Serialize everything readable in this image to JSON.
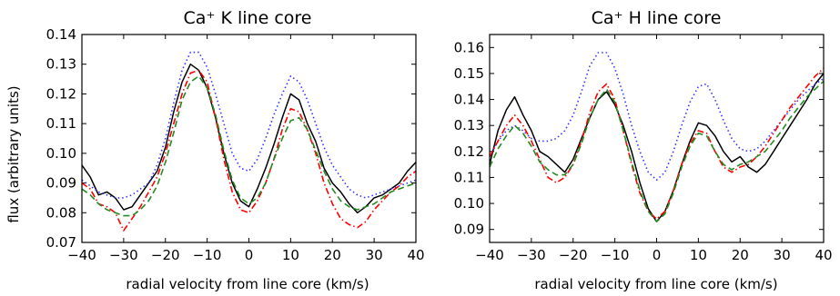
{
  "chart_data": [
    {
      "type": "line",
      "title": "Ca⁺  K line core",
      "xlabel": "radial velocity from line core (km/s)",
      "ylabel": "flux (arbitrary units)",
      "xlim": [
        -40,
        40
      ],
      "ylim": [
        0.07,
        0.14
      ],
      "xticks": [
        -40,
        -30,
        -20,
        -10,
        0,
        10,
        20,
        30,
        40
      ],
      "xtick_labels": [
        "−40",
        "−30",
        "−20",
        "−10",
        "0",
        "10",
        "20",
        "30",
        "40"
      ],
      "yticks": [
        0.07,
        0.08,
        0.09,
        0.1,
        0.11,
        0.12,
        0.13,
        0.14
      ],
      "ytick_labels": [
        "0.07",
        "0.08",
        "0.09",
        "0.10",
        "0.11",
        "0.12",
        "0.13",
        "0.14"
      ],
      "grid": false,
      "series": [
        {
          "color": "#000000",
          "style": "solid",
          "x": [
            -40,
            -38,
            -36,
            -34,
            -32,
            -30,
            -28,
            -26,
            -24,
            -22,
            -20,
            -18,
            -16,
            -14,
            -12,
            -10,
            -8,
            -6,
            -4,
            -2,
            0,
            2,
            4,
            6,
            8,
            10,
            12,
            14,
            16,
            18,
            20,
            22,
            24,
            26,
            28,
            30,
            32,
            34,
            36,
            38,
            40
          ],
          "y": [
            0.096,
            0.092,
            0.086,
            0.087,
            0.085,
            0.081,
            0.082,
            0.086,
            0.09,
            0.094,
            0.102,
            0.114,
            0.124,
            0.13,
            0.128,
            0.122,
            0.112,
            0.1,
            0.09,
            0.084,
            0.082,
            0.088,
            0.095,
            0.103,
            0.112,
            0.12,
            0.118,
            0.11,
            0.104,
            0.095,
            0.09,
            0.087,
            0.083,
            0.08,
            0.082,
            0.085,
            0.086,
            0.088,
            0.09,
            0.094,
            0.097
          ]
        },
        {
          "color": "#3333ff",
          "style": "dotted",
          "x": [
            -40,
            -38,
            -36,
            -34,
            -32,
            -30,
            -28,
            -26,
            -24,
            -22,
            -20,
            -18,
            -16,
            -14,
            -12,
            -10,
            -8,
            -6,
            -4,
            -2,
            0,
            2,
            4,
            6,
            8,
            10,
            12,
            14,
            16,
            18,
            20,
            22,
            24,
            26,
            28,
            30,
            32,
            34,
            36,
            38,
            40
          ],
          "y": [
            0.091,
            0.089,
            0.087,
            0.086,
            0.085,
            0.085,
            0.086,
            0.088,
            0.09,
            0.096,
            0.105,
            0.117,
            0.128,
            0.134,
            0.134,
            0.129,
            0.12,
            0.11,
            0.1,
            0.095,
            0.094,
            0.098,
            0.105,
            0.113,
            0.12,
            0.126,
            0.124,
            0.118,
            0.11,
            0.102,
            0.096,
            0.092,
            0.088,
            0.086,
            0.085,
            0.086,
            0.087,
            0.088,
            0.089,
            0.09,
            0.091
          ]
        },
        {
          "color": "#ff0000",
          "style": "dashdot",
          "x": [
            -40,
            -38,
            -36,
            -34,
            -32,
            -30,
            -28,
            -26,
            -24,
            -22,
            -20,
            -18,
            -16,
            -14,
            -12,
            -10,
            -8,
            -6,
            -4,
            -2,
            0,
            2,
            4,
            6,
            8,
            10,
            12,
            14,
            16,
            18,
            20,
            22,
            24,
            26,
            28,
            30,
            32,
            34,
            36,
            38,
            40
          ],
          "y": [
            0.09,
            0.088,
            0.083,
            0.082,
            0.08,
            0.074,
            0.078,
            0.082,
            0.087,
            0.092,
            0.1,
            0.11,
            0.12,
            0.127,
            0.128,
            0.124,
            0.112,
            0.098,
            0.087,
            0.081,
            0.08,
            0.084,
            0.09,
            0.098,
            0.108,
            0.115,
            0.114,
            0.108,
            0.1,
            0.09,
            0.083,
            0.078,
            0.076,
            0.075,
            0.077,
            0.081,
            0.084,
            0.087,
            0.089,
            0.092,
            0.094
          ]
        },
        {
          "color": "#228b22",
          "style": "dashed",
          "x": [
            -40,
            -38,
            -36,
            -34,
            -32,
            -30,
            -28,
            -26,
            -24,
            -22,
            -20,
            -18,
            -16,
            -14,
            -12,
            -10,
            -8,
            -6,
            -4,
            -2,
            0,
            2,
            4,
            6,
            8,
            10,
            12,
            14,
            16,
            18,
            20,
            22,
            24,
            26,
            28,
            30,
            32,
            34,
            36,
            38,
            40
          ],
          "y": [
            0.088,
            0.086,
            0.083,
            0.081,
            0.08,
            0.079,
            0.079,
            0.081,
            0.084,
            0.089,
            0.097,
            0.107,
            0.118,
            0.124,
            0.126,
            0.122,
            0.113,
            0.101,
            0.091,
            0.085,
            0.083,
            0.085,
            0.09,
            0.098,
            0.105,
            0.111,
            0.112,
            0.108,
            0.101,
            0.094,
            0.088,
            0.084,
            0.082,
            0.081,
            0.082,
            0.083,
            0.085,
            0.087,
            0.088,
            0.089,
            0.09
          ]
        }
      ]
    },
    {
      "type": "line",
      "title": "Ca⁺  H line core",
      "xlabel": "radial velocity from line core (km/s)",
      "ylabel": "",
      "xlim": [
        -40,
        40
      ],
      "ylim": [
        0.085,
        0.165
      ],
      "xticks": [
        -40,
        -30,
        -20,
        -10,
        0,
        10,
        20,
        30,
        40
      ],
      "xtick_labels": [
        "−40",
        "−30",
        "−20",
        "−10",
        "0",
        "10",
        "20",
        "30",
        "40"
      ],
      "yticks": [
        0.09,
        0.1,
        0.11,
        0.12,
        0.13,
        0.14,
        0.15,
        0.16
      ],
      "ytick_labels": [
        "0.09",
        "0.10",
        "0.11",
        "0.12",
        "0.13",
        "0.14",
        "0.15",
        "0.16"
      ],
      "grid": false,
      "series": [
        {
          "color": "#000000",
          "style": "solid",
          "x": [
            -40,
            -38,
            -36,
            -34,
            -32,
            -30,
            -28,
            -26,
            -24,
            -22,
            -20,
            -18,
            -16,
            -14,
            -12,
            -10,
            -8,
            -6,
            -4,
            -2,
            0,
            2,
            4,
            6,
            8,
            10,
            12,
            14,
            16,
            18,
            20,
            22,
            24,
            26,
            28,
            30,
            32,
            34,
            36,
            38,
            40
          ],
          "y": [
            0.115,
            0.128,
            0.136,
            0.141,
            0.134,
            0.128,
            0.12,
            0.118,
            0.115,
            0.112,
            0.117,
            0.125,
            0.133,
            0.14,
            0.143,
            0.138,
            0.13,
            0.12,
            0.108,
            0.098,
            0.093,
            0.097,
            0.105,
            0.115,
            0.124,
            0.131,
            0.13,
            0.126,
            0.12,
            0.116,
            0.118,
            0.114,
            0.112,
            0.115,
            0.12,
            0.125,
            0.13,
            0.135,
            0.14,
            0.146,
            0.15
          ]
        },
        {
          "color": "#3333ff",
          "style": "dotted",
          "x": [
            -40,
            -38,
            -36,
            -34,
            -32,
            -30,
            -28,
            -26,
            -24,
            -22,
            -20,
            -18,
            -16,
            -14,
            -12,
            -10,
            -8,
            -6,
            -4,
            -2,
            0,
            2,
            4,
            6,
            8,
            10,
            12,
            14,
            16,
            18,
            20,
            22,
            24,
            26,
            28,
            30,
            32,
            34,
            36,
            38,
            40
          ],
          "y": [
            0.118,
            0.124,
            0.128,
            0.13,
            0.128,
            0.125,
            0.124,
            0.124,
            0.125,
            0.128,
            0.134,
            0.143,
            0.153,
            0.158,
            0.158,
            0.152,
            0.142,
            0.13,
            0.12,
            0.112,
            0.109,
            0.112,
            0.12,
            0.13,
            0.139,
            0.145,
            0.146,
            0.14,
            0.132,
            0.125,
            0.121,
            0.12,
            0.121,
            0.124,
            0.128,
            0.132,
            0.136,
            0.14,
            0.143,
            0.146,
            0.148
          ]
        },
        {
          "color": "#ff0000",
          "style": "dashdot",
          "x": [
            -40,
            -38,
            -36,
            -34,
            -32,
            -30,
            -28,
            -26,
            -24,
            -22,
            -20,
            -18,
            -16,
            -14,
            -12,
            -10,
            -8,
            -6,
            -4,
            -2,
            0,
            2,
            4,
            6,
            8,
            10,
            12,
            14,
            16,
            18,
            20,
            22,
            24,
            26,
            28,
            30,
            32,
            34,
            36,
            38,
            40
          ],
          "y": [
            0.118,
            0.124,
            0.13,
            0.134,
            0.13,
            0.124,
            0.117,
            0.11,
            0.108,
            0.11,
            0.115,
            0.124,
            0.135,
            0.143,
            0.146,
            0.14,
            0.128,
            0.115,
            0.104,
            0.097,
            0.094,
            0.097,
            0.105,
            0.115,
            0.123,
            0.128,
            0.127,
            0.12,
            0.114,
            0.112,
            0.114,
            0.115,
            0.118,
            0.122,
            0.127,
            0.132,
            0.137,
            0.141,
            0.145,
            0.149,
            0.152
          ]
        },
        {
          "color": "#228b22",
          "style": "dashed",
          "x": [
            -40,
            -38,
            -36,
            -34,
            -32,
            -30,
            -28,
            -26,
            -24,
            -22,
            -20,
            -18,
            -16,
            -14,
            -12,
            -10,
            -8,
            -6,
            -4,
            -2,
            0,
            2,
            4,
            6,
            8,
            10,
            12,
            14,
            16,
            18,
            20,
            22,
            24,
            26,
            28,
            30,
            32,
            34,
            36,
            38,
            40
          ],
          "y": [
            0.114,
            0.121,
            0.126,
            0.13,
            0.127,
            0.122,
            0.116,
            0.113,
            0.111,
            0.111,
            0.115,
            0.123,
            0.133,
            0.14,
            0.144,
            0.139,
            0.128,
            0.116,
            0.105,
            0.097,
            0.093,
            0.096,
            0.104,
            0.114,
            0.122,
            0.127,
            0.126,
            0.12,
            0.115,
            0.113,
            0.115,
            0.116,
            0.118,
            0.12,
            0.124,
            0.128,
            0.133,
            0.137,
            0.141,
            0.144,
            0.147
          ]
        }
      ]
    }
  ]
}
